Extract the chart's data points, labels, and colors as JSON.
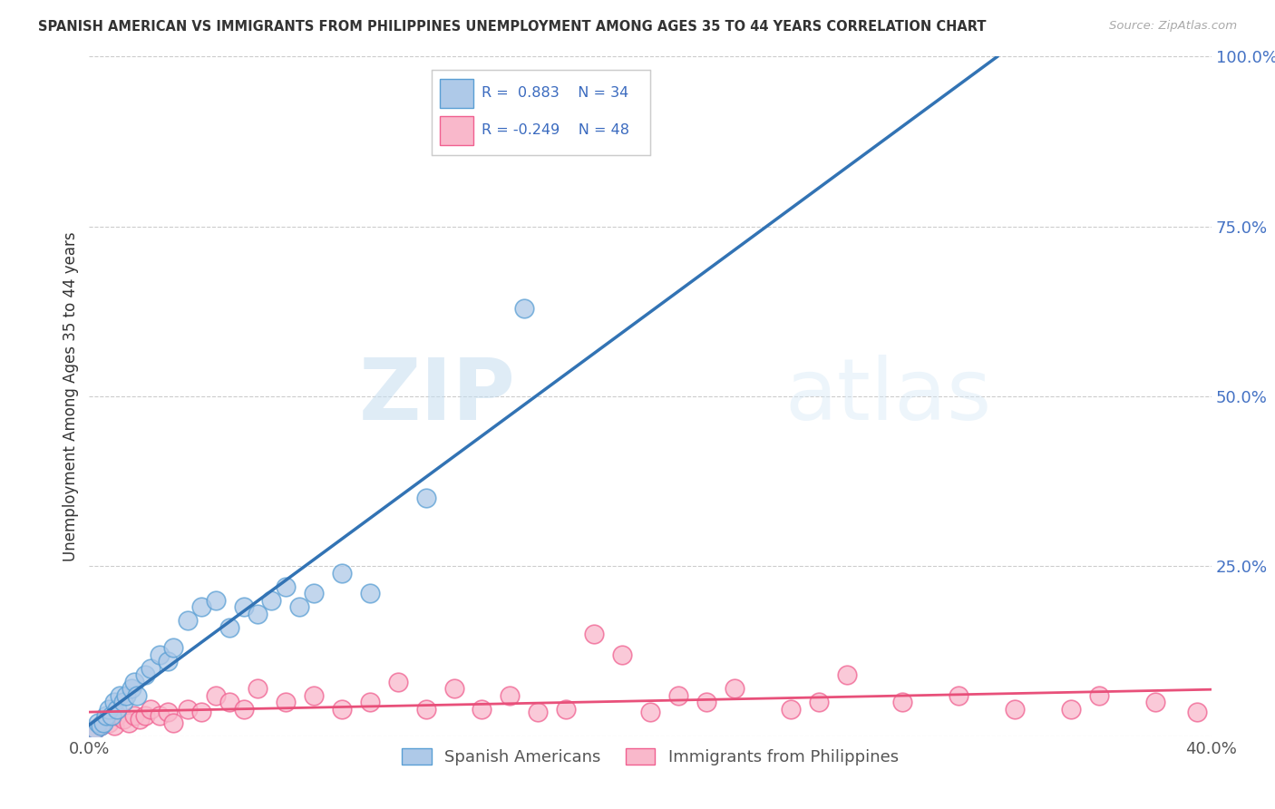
{
  "title": "SPANISH AMERICAN VS IMMIGRANTS FROM PHILIPPINES UNEMPLOYMENT AMONG AGES 35 TO 44 YEARS CORRELATION CHART",
  "source": "Source: ZipAtlas.com",
  "ylabel": "Unemployment Among Ages 35 to 44 years",
  "x_min": 0.0,
  "x_max": 0.4,
  "y_min": 0.0,
  "y_max": 1.0,
  "x_ticks": [
    0.0,
    0.1,
    0.2,
    0.3,
    0.4
  ],
  "y_ticks": [
    0.0,
    0.25,
    0.5,
    0.75,
    1.0
  ],
  "blue_color": "#aec9e8",
  "pink_color": "#f9b8cb",
  "blue_edge_color": "#5a9fd4",
  "pink_edge_color": "#f06090",
  "blue_line_color": "#3273b4",
  "pink_line_color": "#e8507a",
  "blue_label": "Spanish Americans",
  "pink_label": "Immigrants from Philippines",
  "R_blue": 0.883,
  "N_blue": 34,
  "R_pink": -0.249,
  "N_pink": 48,
  "legend_text_color": "#3a6abf",
  "watermark_zip": "ZIP",
  "watermark_atlas": "atlas",
  "blue_scatter_x": [
    0.002,
    0.003,
    0.004,
    0.005,
    0.006,
    0.007,
    0.008,
    0.009,
    0.01,
    0.011,
    0.012,
    0.013,
    0.015,
    0.016,
    0.017,
    0.02,
    0.022,
    0.025,
    0.028,
    0.03,
    0.035,
    0.04,
    0.045,
    0.05,
    0.055,
    0.06,
    0.065,
    0.07,
    0.075,
    0.08,
    0.09,
    0.1,
    0.12,
    0.155
  ],
  "blue_scatter_y": [
    0.01,
    0.02,
    0.015,
    0.02,
    0.03,
    0.04,
    0.03,
    0.05,
    0.04,
    0.06,
    0.05,
    0.06,
    0.07,
    0.08,
    0.06,
    0.09,
    0.1,
    0.12,
    0.11,
    0.13,
    0.17,
    0.19,
    0.2,
    0.16,
    0.19,
    0.18,
    0.2,
    0.22,
    0.19,
    0.21,
    0.24,
    0.21,
    0.35,
    0.63
  ],
  "pink_scatter_x": [
    0.002,
    0.004,
    0.005,
    0.007,
    0.009,
    0.01,
    0.012,
    0.014,
    0.016,
    0.018,
    0.02,
    0.022,
    0.025,
    0.028,
    0.03,
    0.035,
    0.04,
    0.045,
    0.05,
    0.055,
    0.06,
    0.07,
    0.08,
    0.09,
    0.1,
    0.11,
    0.12,
    0.13,
    0.14,
    0.15,
    0.16,
    0.17,
    0.18,
    0.19,
    0.2,
    0.21,
    0.22,
    0.23,
    0.25,
    0.26,
    0.27,
    0.29,
    0.31,
    0.33,
    0.35,
    0.36,
    0.38,
    0.395
  ],
  "pink_scatter_y": [
    0.01,
    0.015,
    0.02,
    0.02,
    0.015,
    0.03,
    0.025,
    0.02,
    0.03,
    0.025,
    0.03,
    0.04,
    0.03,
    0.035,
    0.02,
    0.04,
    0.035,
    0.06,
    0.05,
    0.04,
    0.07,
    0.05,
    0.06,
    0.04,
    0.05,
    0.08,
    0.04,
    0.07,
    0.04,
    0.06,
    0.035,
    0.04,
    0.15,
    0.12,
    0.035,
    0.06,
    0.05,
    0.07,
    0.04,
    0.05,
    0.09,
    0.05,
    0.06,
    0.04,
    0.04,
    0.06,
    0.05,
    0.035
  ]
}
